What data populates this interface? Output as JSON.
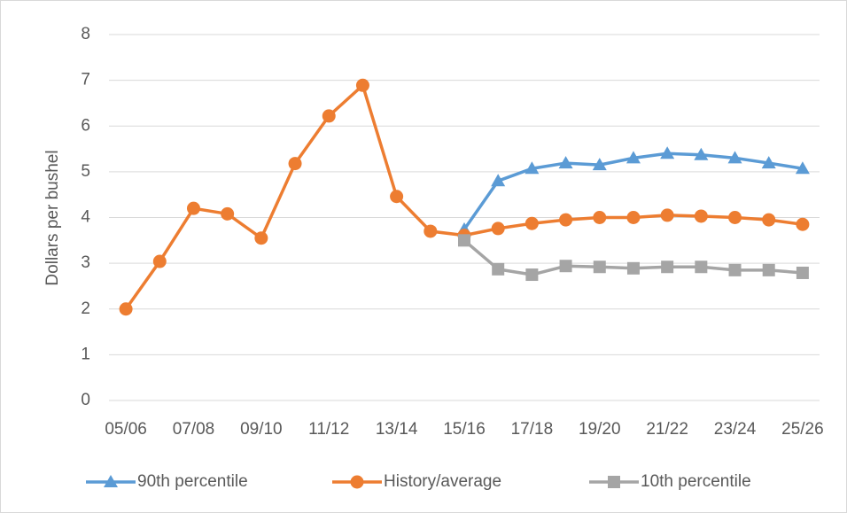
{
  "chart_data": {
    "type": "line",
    "y_label": "Dollars per bushel",
    "categories": [
      "05/06",
      null,
      "07/08",
      null,
      "09/10",
      null,
      "11/12",
      null,
      "13/14",
      null,
      "15/16",
      null,
      "17/18",
      null,
      "19/20",
      null,
      "21/22",
      null,
      "23/24",
      null,
      "25/26"
    ],
    "series": [
      {
        "name": "90th percentile",
        "color": "#5b9bd5",
        "marker": "triangle",
        "values": [
          null,
          null,
          null,
          null,
          null,
          null,
          null,
          null,
          null,
          null,
          3.74,
          4.8,
          5.07,
          5.19,
          5.15,
          5.3,
          5.4,
          5.37,
          5.3,
          5.19,
          5.07
        ]
      },
      {
        "name": "History/average",
        "color": "#ed7d31",
        "marker": "circle",
        "values": [
          2.0,
          3.04,
          4.2,
          4.08,
          3.55,
          5.18,
          6.22,
          6.89,
          4.46,
          3.7,
          3.61,
          3.76,
          3.87,
          3.95,
          4.0,
          4.0,
          4.05,
          4.03,
          4.0,
          3.95,
          3.85
        ]
      },
      {
        "name": "10th percentile",
        "color": "#a5a5a5",
        "marker": "square",
        "values": [
          null,
          null,
          null,
          null,
          null,
          null,
          null,
          null,
          null,
          null,
          3.5,
          2.87,
          2.75,
          2.94,
          2.92,
          2.89,
          2.92,
          2.92,
          2.85,
          2.85,
          2.79
        ]
      }
    ],
    "ylim": [
      0,
      8
    ],
    "yticks": [
      0,
      1,
      2,
      3,
      4,
      5,
      6,
      7,
      8
    ],
    "grid": true,
    "legend": "bottom"
  }
}
